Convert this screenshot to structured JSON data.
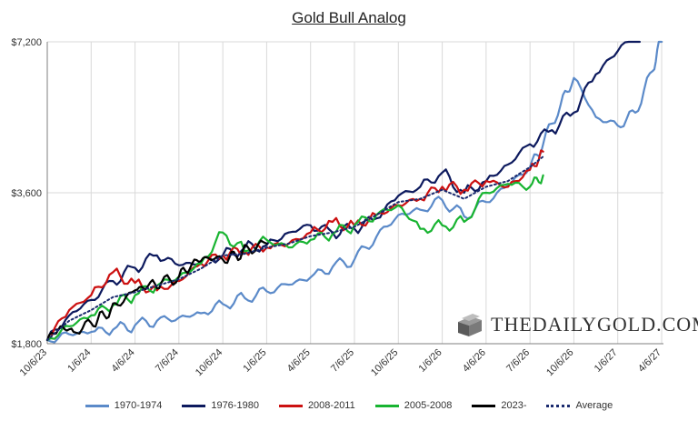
{
  "chart_data": {
    "type": "line",
    "title": "Gold Bull Analog",
    "xlabel": "",
    "ylabel": "",
    "x_ticks": [
      "10/6/23",
      "1/6/24",
      "4/6/24",
      "7/6/24",
      "10/6/24",
      "1/6/25",
      "4/6/25",
      "7/6/25",
      "10/6/25",
      "1/6/26",
      "4/6/26",
      "7/6/26",
      "10/6/26",
      "1/6/27",
      "4/6/27"
    ],
    "y_ticks": [
      "$1,800",
      "$3,600",
      "$7,200"
    ],
    "y_tick_values": [
      1800,
      3600,
      7200
    ],
    "ylim": [
      1800,
      7200
    ],
    "y_scale": "log",
    "grid": "vertical",
    "legend_position": "bottom",
    "series": [
      {
        "name": "1970-1974",
        "color": "#5b8ac9",
        "style": "solid",
        "x": [
          0,
          0.5,
          1,
          1.5,
          2,
          2.5,
          3,
          3.5,
          4,
          4.5,
          5,
          5.5,
          6,
          6.5,
          7,
          7.5,
          8,
          8.5,
          9,
          9.5,
          10,
          10.5,
          11,
          11.3,
          11.7,
          12,
          12.5,
          13,
          13.4,
          13.8,
          14
        ],
        "y": [
          1830,
          1880,
          1900,
          1920,
          1960,
          2000,
          2030,
          2070,
          2160,
          2220,
          2290,
          2360,
          2440,
          2560,
          2650,
          2940,
          3250,
          3330,
          3480,
          3230,
          3450,
          3720,
          4050,
          4500,
          5400,
          6100,
          5100,
          4900,
          5200,
          6300,
          7500
        ]
      },
      {
        "name": "1976-1980",
        "color": "#0d1a5e",
        "style": "solid",
        "x": [
          0,
          0.5,
          1,
          1.5,
          2,
          2.5,
          3,
          3.5,
          4,
          4.5,
          5,
          5.5,
          6,
          6.5,
          7,
          7.5,
          8,
          8.5,
          9,
          9.5,
          10,
          10.5,
          11,
          11.5,
          12,
          12.5,
          13,
          13.5
        ],
        "y": [
          1830,
          2050,
          2200,
          2400,
          2550,
          2700,
          2580,
          2620,
          2700,
          2800,
          2830,
          3000,
          3100,
          3000,
          3050,
          3200,
          3550,
          3700,
          3950,
          3600,
          3800,
          4100,
          4500,
          4800,
          5200,
          6200,
          6900,
          7600
        ]
      },
      {
        "name": "2008-2011",
        "color": "#cc1111",
        "style": "solid",
        "x": [
          0,
          0.5,
          1,
          1.5,
          2,
          2.5,
          3,
          3.5,
          4,
          4.5,
          5,
          5.5,
          6,
          6.5,
          7,
          7.5,
          8,
          8.5,
          9,
          9.5,
          10,
          10.5,
          11,
          11.3
        ],
        "y": [
          1830,
          2100,
          2250,
          2500,
          2380,
          2300,
          2400,
          2600,
          2700,
          2750,
          2800,
          2850,
          3000,
          3150,
          3100,
          3250,
          3400,
          3500,
          3700,
          3650,
          3800,
          3700,
          4000,
          4350
        ]
      },
      {
        "name": "2005-2008",
        "color": "#18b431",
        "style": "solid",
        "x": [
          0,
          0.5,
          1,
          1.5,
          2,
          2.5,
          3,
          3.5,
          4,
          4.5,
          5,
          5.5,
          6,
          6.5,
          7,
          7.5,
          8,
          8.5,
          9,
          9.5,
          10,
          10.5,
          11,
          11.3
        ],
        "y": [
          1830,
          1950,
          2050,
          2150,
          2250,
          2350,
          2450,
          2600,
          3000,
          2750,
          2900,
          2800,
          2900,
          2980,
          3100,
          3250,
          3400,
          3050,
          3100,
          3150,
          3600,
          3750,
          3700,
          3900
        ]
      },
      {
        "name": "2023-",
        "color": "#000000",
        "style": "solid",
        "x": [
          0,
          0.3,
          0.6,
          1,
          1.3,
          1.6,
          2,
          2.3,
          2.6,
          3,
          3.3,
          3.6,
          4,
          4.3,
          4.6,
          5
        ],
        "y": [
          1830,
          1950,
          1900,
          1980,
          2050,
          2150,
          2300,
          2350,
          2380,
          2450,
          2600,
          2680,
          2650,
          2700,
          2780,
          2850
        ]
      },
      {
        "name": "Average",
        "color": "#1a2a6e",
        "style": "dotted",
        "x": [
          0,
          0.5,
          1,
          1.5,
          2,
          2.5,
          3,
          3.5,
          4,
          4.5,
          5,
          5.5,
          6,
          6.5,
          7,
          7.5,
          8,
          8.5,
          9,
          9.5,
          10,
          10.5,
          11,
          11.3
        ],
        "y": [
          1830,
          2000,
          2100,
          2230,
          2280,
          2350,
          2420,
          2540,
          2700,
          2720,
          2800,
          2850,
          2950,
          3000,
          3080,
          3250,
          3450,
          3500,
          3650,
          3500,
          3700,
          3800,
          4050,
          4250
        ]
      }
    ]
  },
  "watermark": {
    "text": "THEDAILYGOLD.COM",
    "icon": "gold-bars-icon"
  }
}
